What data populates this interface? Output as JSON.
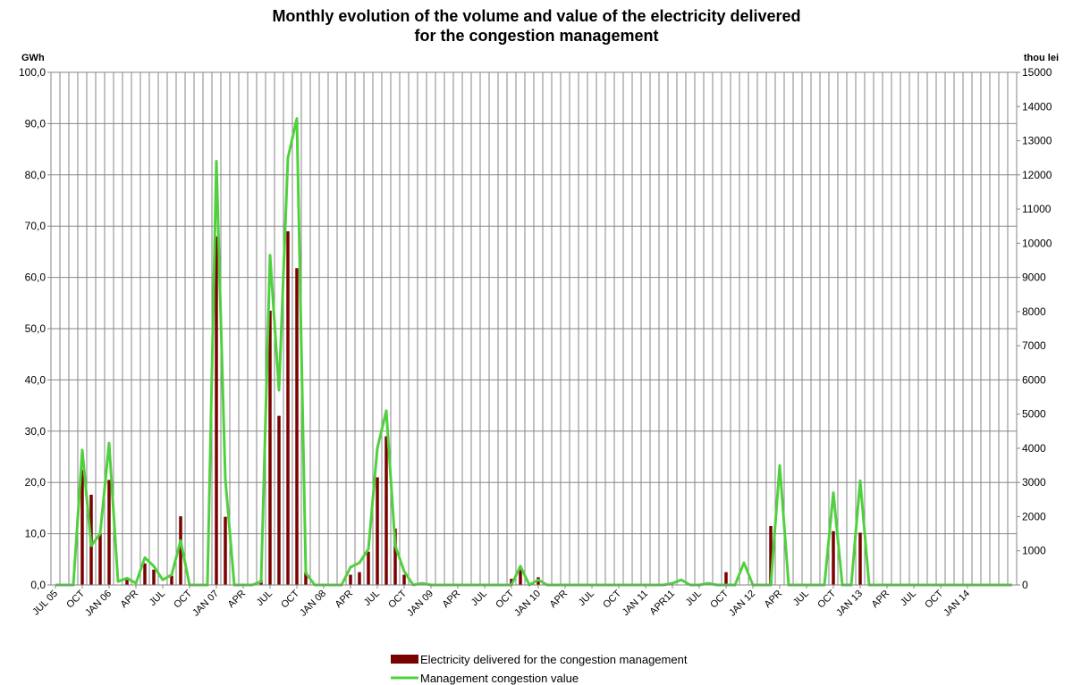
{
  "chart_data": {
    "type": "bar-line",
    "title_line1": "Monthly evolution of the volume and value of the electricity delivered",
    "title_line2": "for the congestion management",
    "y_left_unit": "GWh",
    "y_right_unit": "thou lei",
    "y_left_range": [
      0,
      100
    ],
    "y_right_range": [
      0,
      15000
    ],
    "y_left_ticks": [
      "0,0",
      "10,0",
      "20,0",
      "30,0",
      "40,0",
      "50,0",
      "60,0",
      "70,0",
      "80,0",
      "90,0",
      "100,0"
    ],
    "y_right_ticks": [
      "0",
      "1000",
      "2000",
      "3000",
      "4000",
      "5000",
      "6000",
      "7000",
      "8000",
      "9000",
      "10000",
      "11000",
      "12000",
      "13000",
      "14000",
      "15000"
    ],
    "grid": true,
    "legend_position": "bottom",
    "x_months": [
      "Jul 2005",
      "Aug 2005",
      "Sep 2005",
      "Oct 2005",
      "Nov 2005",
      "Dec 2005",
      "Jan 2006",
      "Feb 2006",
      "Mar 2006",
      "Apr 2006",
      "May 2006",
      "Jun 2006",
      "Jul 2006",
      "Aug 2006",
      "Sep 2006",
      "Oct 2006",
      "Nov 2006",
      "Dec 2006",
      "Jan 2007",
      "Feb 2007",
      "Mar 2007",
      "Apr 2007",
      "May 2007",
      "Jun 2007",
      "Jul 2007",
      "Aug 2007",
      "Sep 2007",
      "Oct 2007",
      "Nov 2007",
      "Dec 2007",
      "Jan 2008",
      "Feb 2008",
      "Mar 2008",
      "Apr 2008",
      "May 2008",
      "Jun 2008",
      "Jul 2008",
      "Aug 2008",
      "Sep 2008",
      "Oct 2008",
      "Nov 2008",
      "Dec 2008",
      "Jan 2009",
      "Feb 2009",
      "Mar 2009",
      "Apr 2009",
      "May 2009",
      "Jun 2009",
      "Jul 2009",
      "Aug 2009",
      "Sep 2009",
      "Oct 2009",
      "Nov 2009",
      "Dec 2009",
      "Jan 2010",
      "Feb 2010",
      "Mar 2010",
      "Apr 2010",
      "May 2010",
      "Jun 2010",
      "Jul 2010",
      "Aug 2010",
      "Sep 2010",
      "Oct 2010",
      "Nov 2010",
      "Dec 2010",
      "Jan 2011",
      "Feb 2011",
      "Mar 2011",
      "Apr 2011",
      "May 2011",
      "Jun 2011",
      "Jul 2011",
      "Aug 2011",
      "Sep 2011",
      "Oct 2011",
      "Nov 2011",
      "Dec 2011",
      "Jan 2012",
      "Feb 2012",
      "Mar 2012",
      "Apr 2012",
      "May 2012",
      "Jun 2012",
      "Jul 2012",
      "Aug 2012",
      "Sep 2012",
      "Oct 2012",
      "Nov 2012",
      "Dec 2012",
      "Jan 2013",
      "Feb 2013",
      "Mar 2013",
      "Apr 2013",
      "May 2013",
      "Jun 2013",
      "Jul 2013",
      "Aug 2013",
      "Sep 2013",
      "Oct 2013",
      "Nov 2013",
      "Dec 2013",
      "Jan 2014",
      "Feb 2014",
      "Mar 2014",
      "Apr 2014",
      "May 2014",
      "Jun 2014"
    ],
    "x_tick_labels": [
      {
        "index": 0,
        "label": "JUL 05"
      },
      {
        "index": 3,
        "label": "OCT"
      },
      {
        "index": 6,
        "label": "JAN 06"
      },
      {
        "index": 9,
        "label": "APR"
      },
      {
        "index": 12,
        "label": "JUL"
      },
      {
        "index": 15,
        "label": "OCT"
      },
      {
        "index": 18,
        "label": "JAN 07"
      },
      {
        "index": 21,
        "label": "APR"
      },
      {
        "index": 24,
        "label": "JUL"
      },
      {
        "index": 27,
        "label": "OCT"
      },
      {
        "index": 30,
        "label": "JAN 08"
      },
      {
        "index": 33,
        "label": "APR"
      },
      {
        "index": 36,
        "label": "JUL"
      },
      {
        "index": 39,
        "label": "OCT"
      },
      {
        "index": 42,
        "label": "JAN 09"
      },
      {
        "index": 45,
        "label": "APR"
      },
      {
        "index": 48,
        "label": "JUL"
      },
      {
        "index": 51,
        "label": "OCT"
      },
      {
        "index": 54,
        "label": "JAN 10"
      },
      {
        "index": 57,
        "label": "APR"
      },
      {
        "index": 60,
        "label": "JUL"
      },
      {
        "index": 63,
        "label": "OCT"
      },
      {
        "index": 66,
        "label": "JAN 11"
      },
      {
        "index": 69,
        "label": "APR11"
      },
      {
        "index": 72,
        "label": "JUL"
      },
      {
        "index": 75,
        "label": "OCT"
      },
      {
        "index": 78,
        "label": "JAN 12"
      },
      {
        "index": 81,
        "label": "APR"
      },
      {
        "index": 84,
        "label": "JUL"
      },
      {
        "index": 87,
        "label": "OCT"
      },
      {
        "index": 90,
        "label": "JAN 13"
      },
      {
        "index": 93,
        "label": "APR"
      },
      {
        "index": 96,
        "label": "JUL"
      },
      {
        "index": 99,
        "label": "OCT"
      },
      {
        "index": 102,
        "label": "JAN 14"
      }
    ],
    "series": [
      {
        "name": "Electricity delivered for the congestion management",
        "type": "bar",
        "axis": "left",
        "color": "#7b0000",
        "values": [
          0,
          0,
          0,
          22.5,
          17.6,
          10,
          20.5,
          0,
          1,
          0,
          4.2,
          3,
          0,
          1.8,
          13.4,
          0,
          0,
          0,
          68,
          13.3,
          0,
          0,
          0,
          1,
          53.5,
          33,
          69,
          61.8,
          2.5,
          0,
          0,
          0,
          0,
          2,
          2.5,
          6.5,
          21,
          29,
          11,
          2,
          0,
          0,
          0,
          0,
          0,
          0,
          0,
          0,
          0,
          0,
          0,
          1.2,
          3.2,
          0,
          1.5,
          0,
          0,
          0,
          0,
          0,
          0,
          0,
          0,
          0,
          0,
          0,
          0,
          0,
          0,
          0,
          0,
          0,
          0,
          0,
          0,
          2.5,
          0,
          0,
          0,
          0,
          11.5,
          0,
          0,
          0,
          0,
          0,
          0,
          10.5,
          0,
          0,
          10.2,
          0,
          0,
          0,
          0,
          0,
          0,
          0,
          0,
          0,
          0,
          0,
          0,
          0,
          0,
          0,
          0,
          0
        ]
      },
      {
        "name": "Management congestion value",
        "type": "line",
        "axis": "right",
        "color": "#4fd13d",
        "values": [
          0,
          0,
          0,
          3950,
          1150,
          1500,
          4150,
          100,
          200,
          50,
          800,
          550,
          150,
          300,
          1300,
          0,
          0,
          0,
          12400,
          3100,
          0,
          0,
          0,
          100,
          9650,
          5700,
          12500,
          13650,
          350,
          0,
          0,
          0,
          0,
          520,
          650,
          1050,
          4000,
          5100,
          1150,
          400,
          0,
          50,
          0,
          0,
          0,
          0,
          0,
          0,
          0,
          0,
          0,
          0,
          550,
          0,
          150,
          0,
          0,
          0,
          0,
          0,
          0,
          0,
          0,
          0,
          0,
          0,
          0,
          0,
          0,
          50,
          150,
          0,
          0,
          50,
          0,
          0,
          0,
          650,
          0,
          0,
          0,
          3500,
          0,
          0,
          0,
          0,
          0,
          2700,
          0,
          0,
          3050,
          0,
          0,
          0,
          0,
          0,
          0,
          0,
          0,
          0,
          0,
          0,
          0,
          0,
          0,
          0,
          0,
          0
        ]
      }
    ]
  },
  "legend": {
    "bar_label": "Electricity delivered for the congestion management",
    "line_label": "Management congestion value"
  }
}
